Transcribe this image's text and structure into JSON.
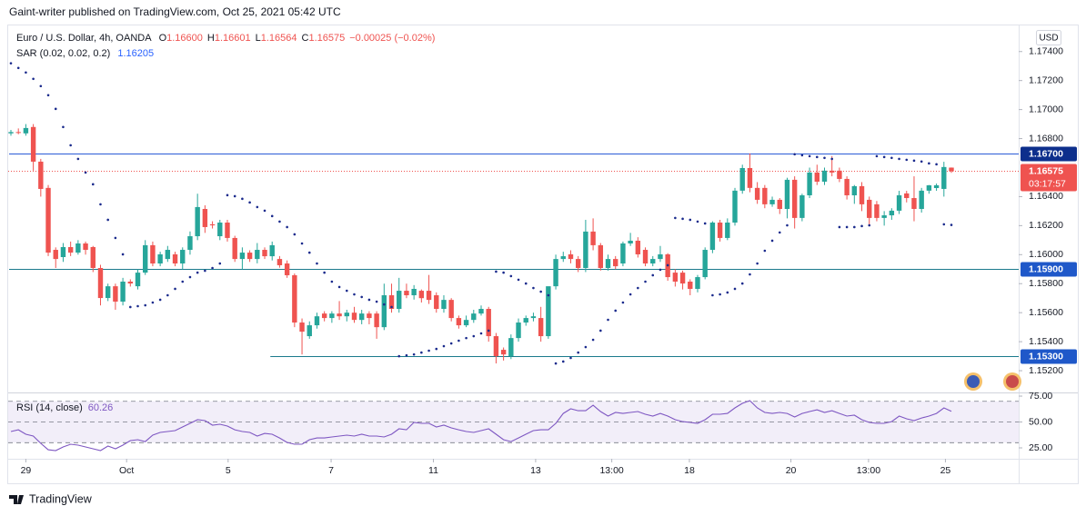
{
  "header": "Gaint-writer published on TradingView.com, Oct 25, 2021 05:42 UTC",
  "footer": "TradingView",
  "chart_data": {
    "type": "candlestick",
    "title": "Euro / U.S. Dollar, 4h, OANDA",
    "ohlc": [
      [
        "O",
        "1.16600"
      ],
      [
        "H",
        "1.16601"
      ],
      [
        "L",
        "1.16564"
      ],
      [
        "C",
        "1.16575"
      ]
    ],
    "change": "−0.00025 (−0.02%)",
    "currency": "USD",
    "up_color": "#26a69a",
    "down_color": "#ef5350",
    "ylim": [
      1.1505,
      1.1758
    ],
    "yticks": [
      {
        "value": 1.174,
        "label": "1.17400"
      },
      {
        "value": 1.172,
        "label": "1.17200"
      },
      {
        "value": 1.17,
        "label": "1.17000"
      },
      {
        "value": 1.168,
        "label": "1.16800"
      },
      {
        "value": 1.164,
        "label": "1.16400"
      },
      {
        "value": 1.162,
        "label": "1.16200"
      },
      {
        "value": 1.16,
        "label": "1.16000"
      },
      {
        "value": 1.158,
        "label": "1.15800"
      },
      {
        "value": 1.156,
        "label": "1.15600"
      },
      {
        "value": 1.154,
        "label": "1.15400"
      },
      {
        "value": 1.152,
        "label": "1.15200"
      }
    ],
    "xticks": [
      {
        "value": 2,
        "label": "29"
      },
      {
        "value": 15.5,
        "label": "Oct"
      },
      {
        "value": 29.1,
        "label": "5"
      },
      {
        "value": 42.9,
        "label": "7"
      },
      {
        "value": 56.6,
        "label": "11"
      },
      {
        "value": 70.3,
        "label": "13"
      },
      {
        "value": 80.5,
        "label": "13:00"
      },
      {
        "value": 90.9,
        "label": "18"
      },
      {
        "value": 104.5,
        "label": "20"
      },
      {
        "value": 114.9,
        "label": "13:00"
      },
      {
        "value": 125.2,
        "label": "25"
      }
    ],
    "horizontal_lines": [
      {
        "value": 1.167,
        "label": "1.16700",
        "color": "#2a5bd7",
        "box": "#0d2f8c",
        "start_index": 0
      },
      {
        "value": 1.159,
        "label": "1.15900",
        "color": "#1b7a8c",
        "box": "#1f58c9",
        "start_index": 0
      },
      {
        "value": 1.153,
        "label": "1.15300",
        "color": "#1b7a8c",
        "box": "#1f58c9",
        "start_index": 35
      }
    ],
    "last_price": {
      "value": 1.16575,
      "label": "1.16575",
      "countdown": "03:17:57",
      "color": "#ef5350"
    },
    "candles": [
      [
        1.16836,
        1.1686,
        1.1682,
        1.16845
      ],
      [
        1.16845,
        1.1687,
        1.1683,
        1.1684
      ],
      [
        1.16836,
        1.169,
        1.1682,
        1.16873
      ],
      [
        1.1688,
        1.169,
        1.16579,
        1.16641
      ],
      [
        1.16641,
        1.1666,
        1.164,
        1.16453
      ],
      [
        1.1646,
        1.1648,
        1.1599,
        1.16014
      ],
      [
        1.16033,
        1.1605,
        1.15908,
        1.1597
      ],
      [
        1.15983,
        1.1608,
        1.1595,
        1.16052
      ],
      [
        1.16052,
        1.1609,
        1.1599,
        1.16014
      ],
      [
        1.16014,
        1.161,
        1.16,
        1.16077
      ],
      [
        1.16077,
        1.1609,
        1.16,
        1.16033
      ],
      [
        1.16052,
        1.1606,
        1.1588,
        1.15908
      ],
      [
        1.15908,
        1.1593,
        1.1565,
        1.15701
      ],
      [
        1.15701,
        1.158,
        1.1568,
        1.15782
      ],
      [
        1.15782,
        1.158,
        1.1562,
        1.15676
      ],
      [
        1.15676,
        1.1584,
        1.1565,
        1.15814
      ],
      [
        1.15814,
        1.1583,
        1.1578,
        1.15801
      ],
      [
        1.15782,
        1.159,
        1.1576,
        1.15876
      ],
      [
        1.15876,
        1.161,
        1.1586,
        1.16065
      ],
      [
        1.16065,
        1.1609,
        1.1592,
        1.15939
      ],
      [
        1.15939,
        1.1602,
        1.1592,
        1.16002
      ],
      [
        1.1597,
        1.1606,
        1.1595,
        1.16033
      ],
      [
        1.16002,
        1.1602,
        1.1592,
        1.15939
      ],
      [
        1.15939,
        1.1605,
        1.159,
        1.16033
      ],
      [
        1.16033,
        1.1616,
        1.16,
        1.16127
      ],
      [
        1.16127,
        1.1642,
        1.161,
        1.16328
      ],
      [
        1.16315,
        1.1634,
        1.1615,
        1.1619
      ],
      [
        1.16209,
        1.1623,
        1.1618,
        1.16202
      ],
      [
        1.16127,
        1.1624,
        1.161,
        1.16221
      ],
      [
        1.16221,
        1.1624,
        1.1609,
        1.16115
      ],
      [
        1.16115,
        1.1613,
        1.1595,
        1.1597
      ],
      [
        1.1597,
        1.1605,
        1.159,
        1.16014
      ],
      [
        1.16014,
        1.1603,
        1.1595,
        1.1597
      ],
      [
        1.1597,
        1.1608,
        1.1594,
        1.16033
      ],
      [
        1.16033,
        1.1605,
        1.1597,
        1.15989
      ],
      [
        1.15989,
        1.1609,
        1.1596,
        1.16065
      ],
      [
        1.1597,
        1.1599,
        1.1591,
        1.15927
      ],
      [
        1.15939,
        1.1596,
        1.1584,
        1.15858
      ],
      [
        1.15858,
        1.1587,
        1.155,
        1.15532
      ],
      [
        1.15532,
        1.1556,
        1.15312,
        1.15469
      ],
      [
        1.15438,
        1.1554,
        1.1542,
        1.15513
      ],
      [
        1.15513,
        1.156,
        1.1549,
        1.15575
      ],
      [
        1.15594,
        1.1561,
        1.1554,
        1.15563
      ],
      [
        1.15563,
        1.1561,
        1.1553,
        1.15594
      ],
      [
        1.15594,
        1.1568,
        1.1555,
        1.15575
      ],
      [
        1.15575,
        1.1562,
        1.1554,
        1.156
      ],
      [
        1.156,
        1.1564,
        1.1553,
        1.1555
      ],
      [
        1.1555,
        1.1562,
        1.1552,
        1.15594
      ],
      [
        1.15594,
        1.1561,
        1.1552,
        1.15563
      ],
      [
        1.15594,
        1.1561,
        1.1542,
        1.155
      ],
      [
        1.155,
        1.158,
        1.1548,
        1.1572
      ],
      [
        1.1572,
        1.158,
        1.156,
        1.15626
      ],
      [
        1.15626,
        1.1584,
        1.156,
        1.15751
      ],
      [
        1.15751,
        1.158,
        1.157,
        1.1572
      ],
      [
        1.1572,
        1.1579,
        1.1569,
        1.15764
      ],
      [
        1.15751,
        1.1576,
        1.1567,
        1.157
      ],
      [
        1.15751,
        1.1586,
        1.1566,
        1.15688
      ],
      [
        1.1572,
        1.1574,
        1.156,
        1.15626
      ],
      [
        1.15626,
        1.1572,
        1.156,
        1.15688
      ],
      [
        1.15688,
        1.157,
        1.1554,
        1.15563
      ],
      [
        1.15563,
        1.1558,
        1.1549,
        1.15513
      ],
      [
        1.15513,
        1.1558,
        1.155,
        1.1555
      ],
      [
        1.1555,
        1.1562,
        1.1553,
        1.15594
      ],
      [
        1.15594,
        1.1565,
        1.1558,
        1.15626
      ],
      [
        1.15626,
        1.1564,
        1.154,
        1.15438
      ],
      [
        1.15438,
        1.1546,
        1.1525,
        1.153
      ],
      [
        1.15344,
        1.1536,
        1.1527,
        1.15312
      ],
      [
        1.153,
        1.1545,
        1.1528,
        1.15425
      ],
      [
        1.15425,
        1.1556,
        1.154,
        1.15532
      ],
      [
        1.15532,
        1.1558,
        1.1551,
        1.15563
      ],
      [
        1.15563,
        1.156,
        1.1554,
        1.15575
      ],
      [
        1.15563,
        1.1564,
        1.154,
        1.15438
      ],
      [
        1.15438,
        1.1578,
        1.1542,
        1.15782
      ],
      [
        1.15782,
        1.16,
        1.1576,
        1.1597
      ],
      [
        1.1597,
        1.1602,
        1.1595,
        1.15989
      ],
      [
        1.16002,
        1.1603,
        1.1594,
        1.1597
      ],
      [
        1.1597,
        1.1599,
        1.1588,
        1.15908
      ],
      [
        1.15908,
        1.1624,
        1.1588,
        1.16159
      ],
      [
        1.16159,
        1.1625,
        1.1603,
        1.16065
      ],
      [
        1.16065,
        1.1608,
        1.1589,
        1.15908
      ],
      [
        1.15908,
        1.16,
        1.1589,
        1.1597
      ],
      [
        1.1597,
        1.1599,
        1.159,
        1.1592
      ],
      [
        1.15939,
        1.1609,
        1.1592,
        1.16077
      ],
      [
        1.16077,
        1.1615,
        1.1606,
        1.16096
      ],
      [
        1.16096,
        1.1612,
        1.1598,
        1.16002
      ],
      [
        1.16033,
        1.1605,
        1.1592,
        1.15939
      ],
      [
        1.15939,
        1.1599,
        1.1592,
        1.1597
      ],
      [
        1.1597,
        1.1606,
        1.1595,
        1.16002
      ],
      [
        1.16002,
        1.1601,
        1.1582,
        1.15845
      ],
      [
        1.15876,
        1.159,
        1.1578,
        1.15814
      ],
      [
        1.15876,
        1.1589,
        1.1576,
        1.15801
      ],
      [
        1.15814,
        1.1583,
        1.1572,
        1.15764
      ],
      [
        1.15764,
        1.1586,
        1.1574,
        1.15845
      ],
      [
        1.15845,
        1.1605,
        1.1583,
        1.16033
      ],
      [
        1.16033,
        1.1623,
        1.1601,
        1.16221
      ],
      [
        1.16221,
        1.1624,
        1.1609,
        1.16115
      ],
      [
        1.16115,
        1.1625,
        1.161,
        1.16221
      ],
      [
        1.16221,
        1.1646,
        1.162,
        1.16441
      ],
      [
        1.16441,
        1.1662,
        1.1642,
        1.16597
      ],
      [
        1.16597,
        1.16698,
        1.1643,
        1.1646
      ],
      [
        1.1646,
        1.165,
        1.1635,
        1.16378
      ],
      [
        1.1646,
        1.1648,
        1.1632,
        1.16347
      ],
      [
        1.16347,
        1.164,
        1.1633,
        1.16378
      ],
      [
        1.16378,
        1.1639,
        1.1628,
        1.16315
      ],
      [
        1.16315,
        1.1653,
        1.1625,
        1.16516
      ],
      [
        1.16516,
        1.1654,
        1.1618,
        1.16253
      ],
      [
        1.16253,
        1.1642,
        1.1623,
        1.16409
      ],
      [
        1.16409,
        1.166,
        1.1639,
        1.16566
      ],
      [
        1.16566,
        1.1662,
        1.1648,
        1.16503
      ],
      [
        1.16503,
        1.166,
        1.1648,
        1.16579
      ],
      [
        1.16579,
        1.1668,
        1.1654,
        1.16566
      ],
      [
        1.16579,
        1.166,
        1.165,
        1.16522
      ],
      [
        1.16522,
        1.1654,
        1.1638,
        1.16409
      ],
      [
        1.16409,
        1.1648,
        1.1635,
        1.16472
      ],
      [
        1.16472,
        1.165,
        1.163,
        1.16347
      ],
      [
        1.16378,
        1.164,
        1.162,
        1.16253
      ],
      [
        1.16347,
        1.1637,
        1.1623,
        1.16253
      ],
      [
        1.16253,
        1.163,
        1.162,
        1.16271
      ],
      [
        1.16271,
        1.1632,
        1.1624,
        1.16303
      ],
      [
        1.16303,
        1.1644,
        1.1628,
        1.16409
      ],
      [
        1.16422,
        1.1644,
        1.1636,
        1.1639
      ],
      [
        1.1639,
        1.1654,
        1.1623,
        1.16315
      ],
      [
        1.16315,
        1.1646,
        1.1629,
        1.16441
      ],
      [
        1.16441,
        1.1648,
        1.1642,
        1.16478
      ],
      [
        1.16459,
        1.1649,
        1.1644,
        1.16478
      ],
      [
        1.16453,
        1.1664,
        1.164,
        1.16604
      ],
      [
        1.166,
        1.16601,
        1.16564,
        1.16575
      ]
    ],
    "sar": {
      "name": "SAR (0.02, 0.02, 0.2)",
      "last": "1.16205",
      "color": "#1a2a8c",
      "values": [
        1.17319,
        1.17287,
        1.17256,
        1.17212,
        1.17162,
        1.17099,
        1.17005,
        1.1688,
        1.16754,
        1.1666,
        1.16566,
        1.16485,
        1.16347,
        1.1624,
        1.16115,
        1.16002,
        1.15639,
        1.15645,
        1.15651,
        1.1567,
        1.15689,
        1.1572,
        1.15764,
        1.15814,
        1.15845,
        1.15876,
        1.15889,
        1.15908,
        1.15939,
        1.1641,
        1.16403,
        1.16385,
        1.1636,
        1.16328,
        1.16303,
        1.16266,
        1.16228,
        1.1619,
        1.1614,
        1.16077,
        1.16014,
        1.15939,
        1.15876,
        1.15814,
        1.15777,
        1.15751,
        1.15726,
        1.15708,
        1.15689,
        1.15676,
        1.15657,
        1.15639,
        1.153,
        1.15306,
        1.15312,
        1.15325,
        1.15338,
        1.1535,
        1.15369,
        1.15388,
        1.15407,
        1.15425,
        1.15438,
        1.15457,
        1.15476,
        1.15883,
        1.15876,
        1.15852,
        1.15827,
        1.15801,
        1.1577,
        1.15745,
        1.1572,
        1.1525,
        1.15263,
        1.15288,
        1.15325,
        1.15363,
        1.15413,
        1.15476,
        1.15551,
        1.15614,
        1.1567,
        1.15726,
        1.1577,
        1.15814,
        1.15858,
        1.15896,
        1.15927,
        1.16253,
        1.16247,
        1.1624,
        1.16228,
        1.16215,
        1.1572,
        1.15726,
        1.15739,
        1.15764,
        1.15801,
        1.15864,
        1.15939,
        1.16027,
        1.16096,
        1.16153,
        1.16202,
        1.16692,
        1.16685,
        1.16679,
        1.16673,
        1.16667,
        1.1666,
        1.1619,
        1.1619,
        1.1619,
        1.16197,
        1.16202,
        1.16679,
        1.16673,
        1.16667,
        1.1666,
        1.16654,
        1.16648,
        1.16642,
        1.16629,
        1.16623,
        1.16209,
        1.16205
      ]
    },
    "rsi": {
      "name": "RSI (14, close)",
      "last": "60.26",
      "color": "#7e57c2",
      "ylim": [
        13.6,
        75.9
      ],
      "yticks": [
        {
          "value": 75,
          "label": "75.00"
        },
        {
          "value": 50,
          "label": "50.00"
        },
        {
          "value": 25,
          "label": "25.00"
        }
      ],
      "bands": [
        70,
        50,
        30
      ],
      "values": [
        40.8,
        42.5,
        38.2,
        36.4,
        29.4,
        23.2,
        22.4,
        25.9,
        28.5,
        27.6,
        25.9,
        24.1,
        22.4,
        26.8,
        24.1,
        27.6,
        32.0,
        32.9,
        31.1,
        37.3,
        39.9,
        40.8,
        41.7,
        45.2,
        48.7,
        52.2,
        51.3,
        46.9,
        47.8,
        46.1,
        42.5,
        40.8,
        39.9,
        36.4,
        39.0,
        38.2,
        34.6,
        30.3,
        28.5,
        28.5,
        32.9,
        34.6,
        34.6,
        35.5,
        36.4,
        37.3,
        36.4,
        38.2,
        36.4,
        36.4,
        35.5,
        38.2,
        43.4,
        42.5,
        49.6,
        48.7,
        48.7,
        45.2,
        46.9,
        44.3,
        42.5,
        40.8,
        39.9,
        41.7,
        43.4,
        38.2,
        32.9,
        31.1,
        34.6,
        38.2,
        41.7,
        42.5,
        42.5,
        48.7,
        58.3,
        62.7,
        60.9,
        60.9,
        66.2,
        60.1,
        55.7,
        59.2,
        58.3,
        59.2,
        60.1,
        57.5,
        55.7,
        58.3,
        55.7,
        52.2,
        50.4,
        49.6,
        48.7,
        52.2,
        57.5,
        57.5,
        58.3,
        63.6,
        68.0,
        70.6,
        63.6,
        59.2,
        58.3,
        59.2,
        58.3,
        54.8,
        58.3,
        60.1,
        61.8,
        59.2,
        60.9,
        58.3,
        55.7,
        56.6,
        52.2,
        49.6,
        48.7,
        48.7,
        50.4,
        55.7,
        53.1,
        51.3,
        53.9,
        55.7,
        58.3,
        63.6,
        60.26
      ]
    }
  }
}
